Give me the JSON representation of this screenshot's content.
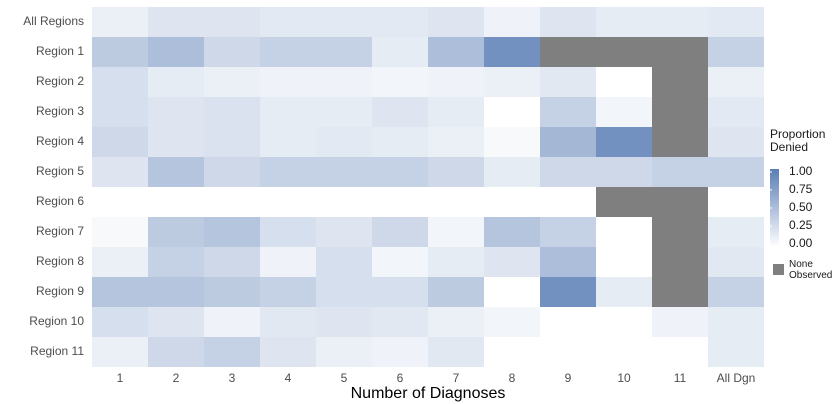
{
  "chart_data": {
    "type": "heatmap",
    "x_label": "Number of Diagnoses",
    "x_categories": [
      "1",
      "2",
      "3",
      "4",
      "5",
      "6",
      "7",
      "8",
      "9",
      "10",
      "11",
      "All Dgn"
    ],
    "y_categories": [
      "All Regions",
      "Region 1",
      "Region 2",
      "Region 3",
      "Region 4",
      "Region 5",
      "Region 6",
      "Region 7",
      "Region 8",
      "Region 9",
      "Region 10",
      "Region 11"
    ],
    "values": [
      [
        0.12,
        0.2,
        0.2,
        0.17,
        0.17,
        0.17,
        0.2,
        0.1,
        0.2,
        0.15,
        0.15,
        0.17
      ],
      [
        0.4,
        0.5,
        0.3,
        0.35,
        0.35,
        0.15,
        0.5,
        0.85,
        null,
        null,
        null,
        0.35
      ],
      [
        0.25,
        0.15,
        0.12,
        0.1,
        0.1,
        0.08,
        0.1,
        0.12,
        0.18,
        0,
        null,
        0.12
      ],
      [
        0.25,
        0.2,
        0.22,
        0.15,
        0.15,
        0.2,
        0.15,
        0,
        0.35,
        0.08,
        null,
        0.17
      ],
      [
        0.3,
        0.2,
        0.22,
        0.15,
        0.17,
        0.15,
        0.12,
        0.05,
        0.55,
        0.85,
        null,
        0.2
      ],
      [
        0.2,
        0.45,
        0.3,
        0.35,
        0.35,
        0.35,
        0.3,
        0.15,
        0.3,
        0.3,
        0.35,
        0.35
      ],
      [
        0,
        0,
        0,
        0,
        0,
        0,
        0,
        0,
        0,
        null,
        null,
        0
      ],
      [
        0.05,
        0.4,
        0.45,
        0.25,
        0.2,
        0.3,
        0.08,
        0.45,
        0.35,
        0,
        null,
        0.15
      ],
      [
        0.12,
        0.35,
        0.3,
        0.1,
        0.25,
        0.08,
        0.15,
        0.2,
        0.5,
        0,
        null,
        0.18
      ],
      [
        0.45,
        0.45,
        0.4,
        0.35,
        0.25,
        0.25,
        0.4,
        0,
        0.85,
        0.15,
        null,
        0.35
      ],
      [
        0.25,
        0.2,
        0.1,
        0.18,
        0.2,
        0.18,
        0.12,
        0.08,
        0,
        0,
        0.1,
        0.15
      ],
      [
        0.12,
        0.3,
        0.35,
        0.2,
        0.12,
        0.1,
        0.18,
        0,
        0,
        0,
        0,
        0.15
      ]
    ],
    "color_low": "#ffffff",
    "color_high": "#5a7db5",
    "missing_color": "#7f7f7f",
    "legend_title": "Proportion Denied",
    "missing_label": "None Observed",
    "clim": [
      0,
      1
    ],
    "cticks": [
      {
        "value": 1,
        "label": "1.00"
      },
      {
        "value": 0.75,
        "label": "0.75"
      },
      {
        "value": 0.5,
        "label": "0.50"
      },
      {
        "value": 0.25,
        "label": "0.25"
      },
      {
        "value": 0,
        "label": "0.00"
      }
    ]
  }
}
